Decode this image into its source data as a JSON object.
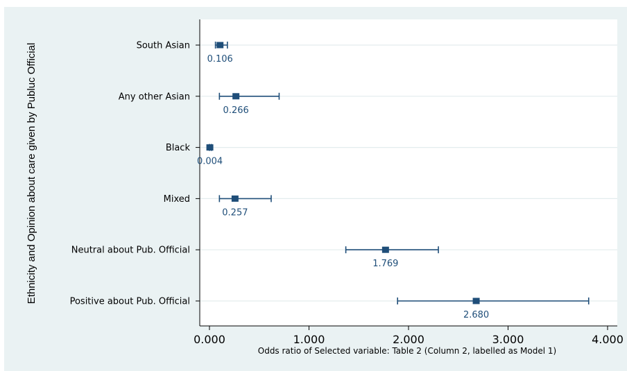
{
  "chart_data": {
    "type": "scatter",
    "subtype": "coefficient-plot-horizontal",
    "title": "",
    "xlabel": "Odds ratio of Selected variable: Table 2 (Column 2, labelled as Model 1)",
    "ylabel": "Ethnicity and Opinion about care given by Publuc Official",
    "xlim": [
      0,
      4
    ],
    "xticks": [
      0,
      1,
      2,
      3,
      4
    ],
    "xtick_labels": [
      "0.000",
      "1.000",
      "2.000",
      "3.000",
      "4.000"
    ],
    "grid": true,
    "legend": "none",
    "marker_color": "#1f4e79",
    "background_color": "#eaf2f3",
    "series": [
      {
        "points": [
          {
            "category": "South Asian",
            "value": 0.106,
            "label": "0.106",
            "ci_low": 0.06,
            "ci_high": 0.18
          },
          {
            "category": "Any other Asian",
            "value": 0.266,
            "label": "0.266",
            "ci_low": 0.1,
            "ci_high": 0.7
          },
          {
            "category": "Black",
            "value": 0.004,
            "label": "0.004",
            "ci_low": 0.0,
            "ci_high": 0.02
          },
          {
            "category": "Mixed",
            "value": 0.257,
            "label": "0.257",
            "ci_low": 0.1,
            "ci_high": 0.62
          },
          {
            "category": "Neutral about Pub. Official",
            "value": 1.769,
            "label": "1.769",
            "ci_low": 1.37,
            "ci_high": 2.3
          },
          {
            "category": "Positive about Pub. Official",
            "value": 2.68,
            "label": "2.680",
            "ci_low": 1.89,
            "ci_high": 3.81
          }
        ]
      }
    ]
  }
}
